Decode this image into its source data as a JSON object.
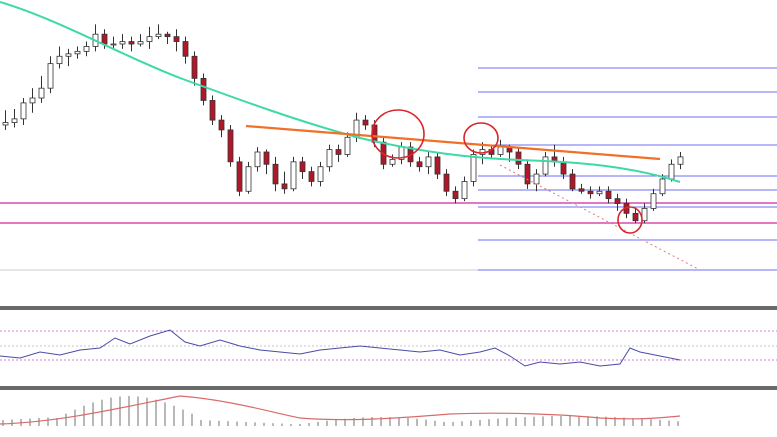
{
  "chart_data": [
    {
      "type": "candlestick",
      "panel": "price",
      "candle_colors": {
        "bull": "#ffffff",
        "bear": "#b0182a",
        "wick": "#333333"
      },
      "candles": [
        [
          150,
          152,
          162,
          146
        ],
        [
          152,
          155,
          163,
          148
        ],
        [
          155,
          168,
          172,
          150
        ],
        [
          168,
          172,
          180,
          160
        ],
        [
          172,
          180,
          190,
          168
        ],
        [
          180,
          200,
          206,
          176
        ],
        [
          200,
          206,
          214,
          196
        ],
        [
          206,
          208,
          212,
          198
        ],
        [
          208,
          210,
          214,
          204
        ],
        [
          210,
          214,
          218,
          206
        ],
        [
          214,
          224,
          232,
          210
        ],
        [
          224,
          216,
          228,
          212
        ],
        [
          216,
          216,
          222,
          212
        ],
        [
          216,
          218,
          224,
          212
        ],
        [
          218,
          216,
          222,
          210
        ],
        [
          216,
          218,
          224,
          214
        ],
        [
          218,
          222,
          230,
          212
        ],
        [
          222,
          224,
          232,
          220
        ],
        [
          224,
          222,
          226,
          216
        ],
        [
          222,
          218,
          228,
          210
        ],
        [
          218,
          206,
          222,
          200
        ],
        [
          206,
          188,
          210,
          182
        ],
        [
          188,
          170,
          192,
          166
        ],
        [
          170,
          154,
          174,
          150
        ],
        [
          154,
          146,
          158,
          140
        ],
        [
          146,
          120,
          150,
          116
        ],
        [
          120,
          96,
          124,
          92
        ],
        [
          96,
          116,
          120,
          94
        ],
        [
          116,
          128,
          132,
          112
        ],
        [
          128,
          118,
          130,
          110
        ],
        [
          118,
          102,
          124,
          96
        ],
        [
          102,
          98,
          112,
          94
        ],
        [
          98,
          120,
          124,
          96
        ],
        [
          120,
          112,
          124,
          106
        ],
        [
          112,
          104,
          116,
          100
        ],
        [
          104,
          116,
          120,
          100
        ],
        [
          116,
          130,
          134,
          112
        ],
        [
          130,
          126,
          134,
          120
        ],
        [
          126,
          140,
          144,
          124
        ],
        [
          140,
          154,
          160,
          136
        ],
        [
          154,
          150,
          158,
          146
        ],
        [
          150,
          136,
          154,
          132
        ],
        [
          136,
          118,
          140,
          114
        ],
        [
          118,
          122,
          126,
          116
        ],
        [
          122,
          132,
          136,
          118
        ],
        [
          132,
          120,
          136,
          116
        ],
        [
          120,
          116,
          124,
          112
        ],
        [
          116,
          124,
          128,
          110
        ],
        [
          124,
          110,
          128,
          106
        ],
        [
          110,
          96,
          114,
          92
        ],
        [
          96,
          90,
          100,
          86
        ],
        [
          90,
          104,
          108,
          88
        ],
        [
          104,
          126,
          130,
          100
        ],
        [
          126,
          130,
          136,
          118
        ],
        [
          130,
          126,
          134,
          122
        ],
        [
          126,
          132,
          138,
          124
        ],
        [
          132,
          128,
          134,
          120
        ],
        [
          128,
          118,
          132,
          114
        ],
        [
          118,
          102,
          122,
          98
        ],
        [
          102,
          110,
          114,
          96
        ],
        [
          110,
          124,
          128,
          108
        ],
        [
          124,
          120,
          134,
          116
        ],
        [
          120,
          110,
          124,
          106
        ],
        [
          110,
          98,
          114,
          96
        ],
        [
          98,
          96,
          102,
          94
        ],
        [
          96,
          94,
          100,
          90
        ],
        [
          94,
          96,
          100,
          92
        ],
        [
          96,
          90,
          100,
          86
        ],
        [
          90,
          86,
          94,
          80
        ],
        [
          86,
          78,
          90,
          74
        ],
        [
          78,
          72,
          82,
          70
        ],
        [
          72,
          82,
          86,
          70
        ],
        [
          82,
          94,
          98,
          80
        ],
        [
          94,
          106,
          110,
          92
        ],
        [
          106,
          118,
          122,
          104
        ],
        [
          118,
          124,
          128,
          114
        ]
      ],
      "moving_average": {
        "color": "#3fd9a6"
      },
      "horizontal_lines": {
        "color": "#d4269c"
      },
      "trendline": {
        "color": "#f07028"
      },
      "fibonacci_lines": {
        "color": "#6c6cf0"
      },
      "highlight_circles": {
        "color": "#d9262a"
      }
    },
    {
      "type": "line",
      "panel": "rsi",
      "series_color": "#4a4aa8",
      "levels_color": "#c75ac7"
    },
    {
      "type": "histogram",
      "panel": "macd",
      "bar_color": "#b8b8b8",
      "signal_color": "#d86b6b"
    }
  ]
}
